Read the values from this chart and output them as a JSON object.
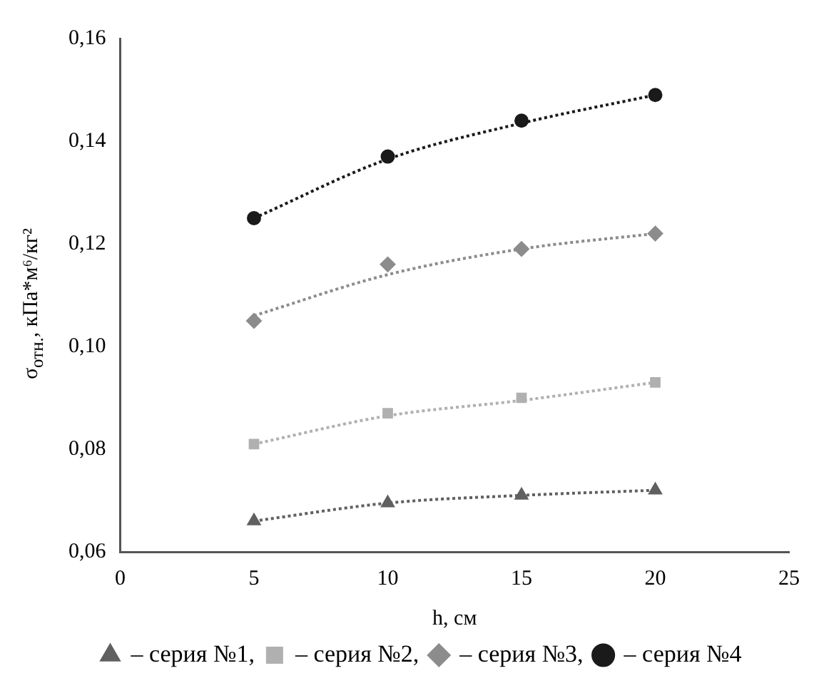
{
  "chart_data": {
    "type": "scatter",
    "xlabel": "h, см",
    "ylabel": "σ$_{отн.}$, кПа*м⁶/кг²",
    "xlim": [
      0,
      25
    ],
    "xticks": [
      0,
      5,
      10,
      15,
      20,
      25
    ],
    "ylim": [
      0.06,
      0.16
    ],
    "yticks": [
      {
        "value": 0.06,
        "label": "0,06"
      },
      {
        "value": 0.08,
        "label": "0,08"
      },
      {
        "value": 0.1,
        "label": "0,10"
      },
      {
        "value": 0.12,
        "label": "0,12"
      },
      {
        "value": 0.14,
        "label": "0,14"
      },
      {
        "value": 0.16,
        "label": "0,16"
      }
    ],
    "grid": false,
    "legend": "bottom",
    "series": [
      {
        "type": "scatter",
        "name": "– серия №1,",
        "color": "#606060",
        "marker": "triangle",
        "x": [
          5,
          10,
          15,
          20
        ],
        "values": [
          0.066,
          0.0695,
          0.071,
          0.072
        ]
      },
      {
        "type": "scatter",
        "name": "– серия №2,",
        "color": "#b0b0b0",
        "marker": "square",
        "x": [
          5,
          10,
          15,
          20
        ],
        "values": [
          0.081,
          0.087,
          0.09,
          0.093
        ]
      },
      {
        "type": "scatter",
        "name": "– серия №3,",
        "color": "#8c8c8c",
        "marker": "diamond",
        "x": [
          5,
          10,
          15,
          20
        ],
        "values": [
          0.105,
          0.116,
          0.119,
          0.122
        ]
      },
      {
        "type": "scatter",
        "name": "– серия №4",
        "color": "#1a1a1a",
        "marker": "circle",
        "x": [
          5,
          10,
          15,
          20
        ],
        "values": [
          0.125,
          0.137,
          0.144,
          0.149
        ]
      },
      {
        "type": "line",
        "color": "#606060",
        "line_style": "dotted",
        "marker": "none",
        "x": [
          5,
          10,
          15,
          20
        ],
        "values": [
          0.066,
          0.0695,
          0.071,
          0.072
        ]
      },
      {
        "type": "line",
        "color": "#b0b0b0",
        "line_style": "dotted",
        "marker": "none",
        "x": [
          5,
          10,
          15,
          20
        ],
        "values": [
          0.081,
          0.0865,
          0.0895,
          0.093
        ]
      },
      {
        "type": "line",
        "color": "#8c8c8c",
        "line_style": "dotted",
        "marker": "none",
        "x": [
          5,
          10,
          15,
          20
        ],
        "values": [
          0.106,
          0.114,
          0.119,
          0.122
        ]
      },
      {
        "type": "line",
        "color": "#1a1a1a",
        "line_style": "dotted",
        "marker": "none",
        "x": [
          5,
          10,
          15,
          20
        ],
        "values": [
          0.125,
          0.1365,
          0.1435,
          0.149
        ]
      }
    ]
  }
}
